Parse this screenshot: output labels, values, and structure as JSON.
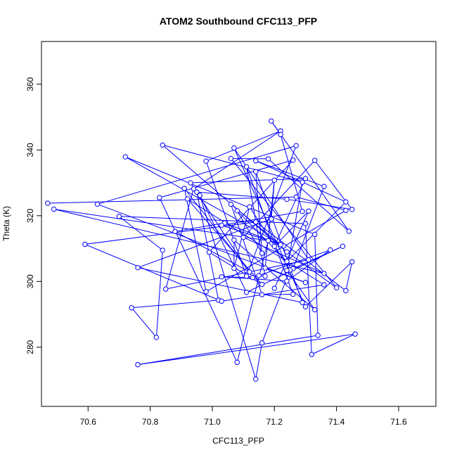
{
  "chart_data": {
    "type": "line",
    "title": "ATOM2 Southbound CFC113_PFP",
    "xlabel": "CFC113_PFP",
    "ylabel": "Theta (K)",
    "xlim": [
      70.45,
      71.72
    ],
    "ylim": [
      262,
      373
    ],
    "xticks": [
      "70.6",
      "70.8",
      "71.0",
      "71.2",
      "71.4",
      "71.6"
    ],
    "yticks": [
      "280",
      "300",
      "320",
      "340",
      "360"
    ],
    "grid": false,
    "legend": "none",
    "series": [
      {
        "color": "#0000ff",
        "marker": "open-circle",
        "points": [
          [
            70.47,
            323.8
          ],
          [
            71.27,
            325.7
          ],
          [
            71.43,
            321.6
          ],
          [
            70.98,
            296.9
          ],
          [
            70.91,
            328.3
          ],
          [
            71.12,
            302.9
          ],
          [
            70.88,
            315.2
          ],
          [
            71.04,
            317.8
          ],
          [
            71.23,
            310.8
          ],
          [
            70.72,
            337.9
          ],
          [
            71.33,
            314.3
          ],
          [
            71.34,
            283.6
          ],
          [
            70.76,
            274.7
          ],
          [
            71.46,
            284.0
          ],
          [
            71.32,
            277.8
          ],
          [
            71.3,
            317.6
          ],
          [
            70.7,
            319.8
          ],
          [
            70.84,
            309.5
          ],
          [
            70.82,
            283.0
          ],
          [
            70.74,
            292.0
          ],
          [
            71.02,
            294.3
          ],
          [
            70.95,
            327.2
          ],
          [
            71.24,
            325.0
          ],
          [
            71.45,
            321.9
          ],
          [
            71.33,
            336.8
          ],
          [
            71.1,
            313.4
          ],
          [
            71.36,
            302.4
          ],
          [
            70.49,
            322.0
          ],
          [
            71.18,
            312.4
          ],
          [
            71.08,
            275.4
          ],
          [
            70.83,
            325.5
          ],
          [
            71.26,
            336.9
          ],
          [
            70.99,
            308.9
          ],
          [
            71.16,
            299.1
          ],
          [
            70.92,
            325.1
          ],
          [
            71.36,
            299.0
          ],
          [
            71.03,
            294.0
          ],
          [
            70.59,
            311.3
          ],
          [
            71.14,
            318.1
          ],
          [
            71.43,
            297.2
          ],
          [
            71.45,
            306.0
          ],
          [
            71.3,
            292.3
          ],
          [
            71.07,
            340.6
          ],
          [
            71.31,
            306.6
          ],
          [
            70.85,
            297.7
          ],
          [
            70.94,
            328.2
          ],
          [
            71.22,
            345.8
          ],
          [
            70.98,
            336.6
          ],
          [
            71.11,
            301.6
          ],
          [
            71.27,
            341.3
          ],
          [
            70.63,
            323.5
          ],
          [
            71.3,
            299.7
          ],
          [
            71.17,
            304.1
          ],
          [
            71.2,
            330.8
          ],
          [
            71.19,
            319.0
          ],
          [
            70.76,
            304.2
          ],
          [
            71.29,
            293.6
          ],
          [
            71.14,
            333.4
          ],
          [
            71.16,
            308.6
          ],
          [
            71.08,
            321.5
          ],
          [
            71.24,
            306.1
          ],
          [
            71.43,
            324.2
          ],
          [
            71.14,
            336.7
          ],
          [
            71.36,
            328.9
          ],
          [
            71.26,
            303.9
          ],
          [
            71.42,
            310.7
          ],
          [
            71.11,
            296.7
          ],
          [
            70.96,
            326.2
          ],
          [
            71.14,
            270.3
          ],
          [
            71.16,
            281.3
          ],
          [
            71.25,
            303.5
          ],
          [
            71.12,
            322.7
          ],
          [
            71.07,
            304.0
          ],
          [
            71.07,
            312.6
          ],
          [
            71.33,
            291.4
          ],
          [
            71.24,
            303.4
          ],
          [
            71.29,
            330.2
          ],
          [
            70.84,
            341.5
          ],
          [
            71.24,
            309.0
          ],
          [
            71.4,
            298.1
          ],
          [
            71.06,
            337.4
          ],
          [
            71.18,
            337.3
          ],
          [
            71.44,
            315.3
          ],
          [
            71.19,
            348.8
          ],
          [
            71.22,
            344.7
          ],
          [
            71.29,
            321.3
          ],
          [
            71.03,
            317.1
          ],
          [
            71.22,
            311.2
          ],
          [
            71.06,
            323.5
          ],
          [
            71.16,
            296.0
          ],
          [
            71.26,
            296.1
          ],
          [
            71.11,
            334.9
          ],
          [
            71.17,
            301.6
          ],
          [
            71.15,
            301.8
          ],
          [
            71.38,
            309.6
          ],
          [
            71.24,
            300.1
          ],
          [
            71.03,
            301.4
          ],
          [
            71.13,
            301.2
          ],
          [
            70.93,
            330.0
          ],
          [
            71.3,
            331.3
          ],
          [
            71.2,
            310.7
          ],
          [
            71.31,
            321.4
          ],
          [
            71.2,
            297.9
          ]
        ]
      }
    ]
  }
}
